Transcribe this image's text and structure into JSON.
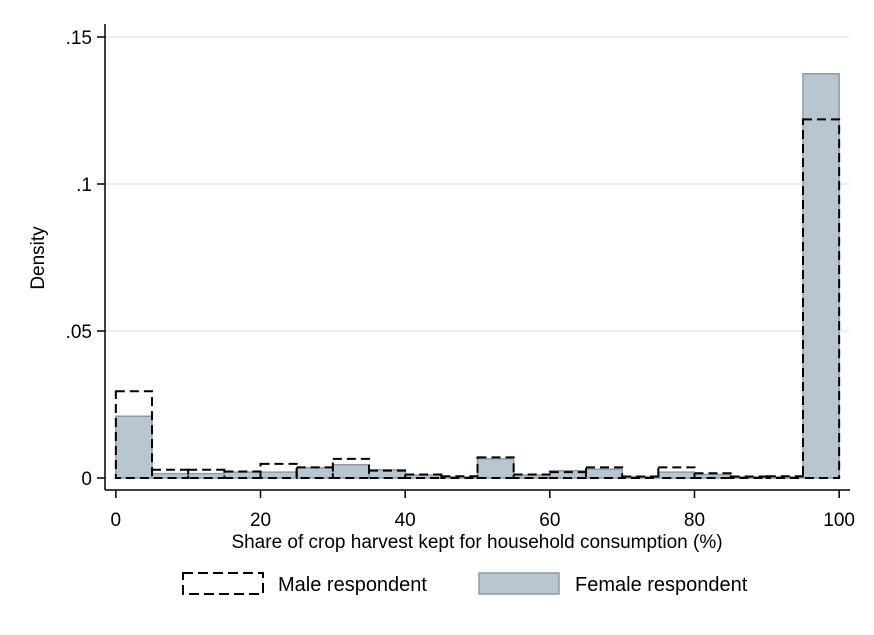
{
  "chart_data": {
    "type": "bar",
    "xlabel": "Share of crop harvest kept for household consumption (%)",
    "ylabel": "Density",
    "xlim": [
      -1.5,
      101.5
    ],
    "ylim": [
      0,
      0.15
    ],
    "x_ticks": [
      {
        "value": 0,
        "label": "0"
      },
      {
        "value": 20,
        "label": "20"
      },
      {
        "value": 40,
        "label": "40"
      },
      {
        "value": 60,
        "label": "60"
      },
      {
        "value": 80,
        "label": "80"
      },
      {
        "value": 100,
        "label": "100"
      }
    ],
    "y_ticks": [
      {
        "value": 0,
        "label": "0"
      },
      {
        "value": 0.05,
        "label": ".05"
      },
      {
        "value": 0.1,
        "label": ".1"
      },
      {
        "value": 0.15,
        "label": ".15"
      }
    ],
    "grid": true,
    "legend_position": "bottom",
    "bin_edges": [
      0,
      5,
      10,
      15,
      20,
      25,
      30,
      35,
      40,
      45,
      50,
      55,
      60,
      65,
      70,
      75,
      80,
      85,
      90,
      95,
      100
    ],
    "series": [
      {
        "name": "Male respondent",
        "style": "outline-dashed",
        "color": "#000000",
        "values": [
          0.0295,
          0.0028,
          0.0028,
          0.0022,
          0.0048,
          0.0036,
          0.0065,
          0.0025,
          0.0012,
          0.0006,
          0.007,
          0.0012,
          0.002,
          0.0036,
          0.0005,
          0.0036,
          0.0016,
          0.0005,
          0.0006,
          0.122
        ]
      },
      {
        "name": "Female respondent",
        "style": "filled",
        "color": "#b8c6d1",
        "edge_color": "#8f9ca6",
        "values": [
          0.021,
          0.0015,
          0.0015,
          0.002,
          0.002,
          0.0035,
          0.0045,
          0.0028,
          0.001,
          0.0004,
          0.0065,
          0.001,
          0.0025,
          0.003,
          0.0005,
          0.002,
          0.0012,
          0.0004,
          0.0004,
          0.1375
        ]
      }
    ]
  }
}
